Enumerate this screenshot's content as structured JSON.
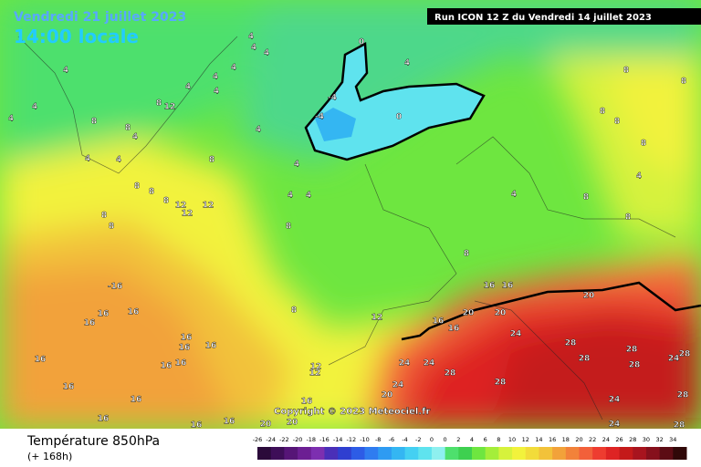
{
  "header": {
    "date": "Vendredi 21 juillet 2023",
    "time": "14:00 locale",
    "run": "Run ICON 12 Z du Vendredi 14 juillet 2023"
  },
  "copyright": "Copyright © 2023 Meteociel.fr",
  "footer": {
    "title": "Température 850hPa",
    "lead": "(+ 168h)"
  },
  "colorbar": {
    "labels": [
      "-26",
      "-24",
      "-22",
      "-20",
      "-18",
      "-16",
      "-14",
      "-12",
      "-10",
      "-8",
      "-6",
      "-4",
      "-2",
      "0",
      "0",
      "2",
      "4",
      "6",
      "8",
      "10",
      "12",
      "14",
      "16",
      "18",
      "20",
      "22",
      "24",
      "26",
      "28",
      "30",
      "32",
      "34"
    ],
    "colors": [
      "#2b0a3a",
      "#3e0e58",
      "#561577",
      "#6c1f93",
      "#7d2fb0",
      "#4a2fb8",
      "#2f3fd0",
      "#2d5ce6",
      "#2f7cf0",
      "#2e9bf2",
      "#34b6f2",
      "#44d0f2",
      "#5fe3ee",
      "#8ef0ef",
      "#4ee06d",
      "#3ed050",
      "#6ee640",
      "#a4ee3a",
      "#d6f23c",
      "#f2f23c",
      "#f2dc3a",
      "#f2c23a",
      "#f2a23a",
      "#f2823a",
      "#f2603a",
      "#ee3c30",
      "#de2424",
      "#c41a1a",
      "#a8141e",
      "#86101c",
      "#5c0c14",
      "#300808"
    ]
  },
  "contour_labels": [
    "0",
    "4",
    "-4",
    "-4",
    "0",
    "4",
    "4",
    "4",
    "4",
    "4",
    "4",
    "4",
    "4",
    "4",
    "8",
    "12",
    "8",
    "8",
    "4",
    "4",
    "4",
    "4",
    "4",
    "4",
    "8",
    "8",
    "8",
    "8",
    "12",
    "12",
    "12",
    "8",
    "8",
    "4",
    "4",
    "8",
    "8",
    "-16",
    "16",
    "16",
    "16",
    "16",
    "16",
    "16",
    "16",
    "16",
    "16",
    "16",
    "16",
    "16",
    "16",
    "16",
    "16",
    "20",
    "20",
    "12",
    "12",
    "12",
    "16",
    "16",
    "20",
    "20",
    "16",
    "16",
    "24",
    "28",
    "24",
    "24",
    "24",
    "20",
    "28",
    "28",
    "28",
    "28",
    "28",
    "28",
    "24",
    "28",
    "24",
    "24",
    "28",
    "20",
    "8",
    "4",
    "8",
    "8",
    "8",
    "8",
    "8",
    "8",
    "4",
    "8"
  ]
}
